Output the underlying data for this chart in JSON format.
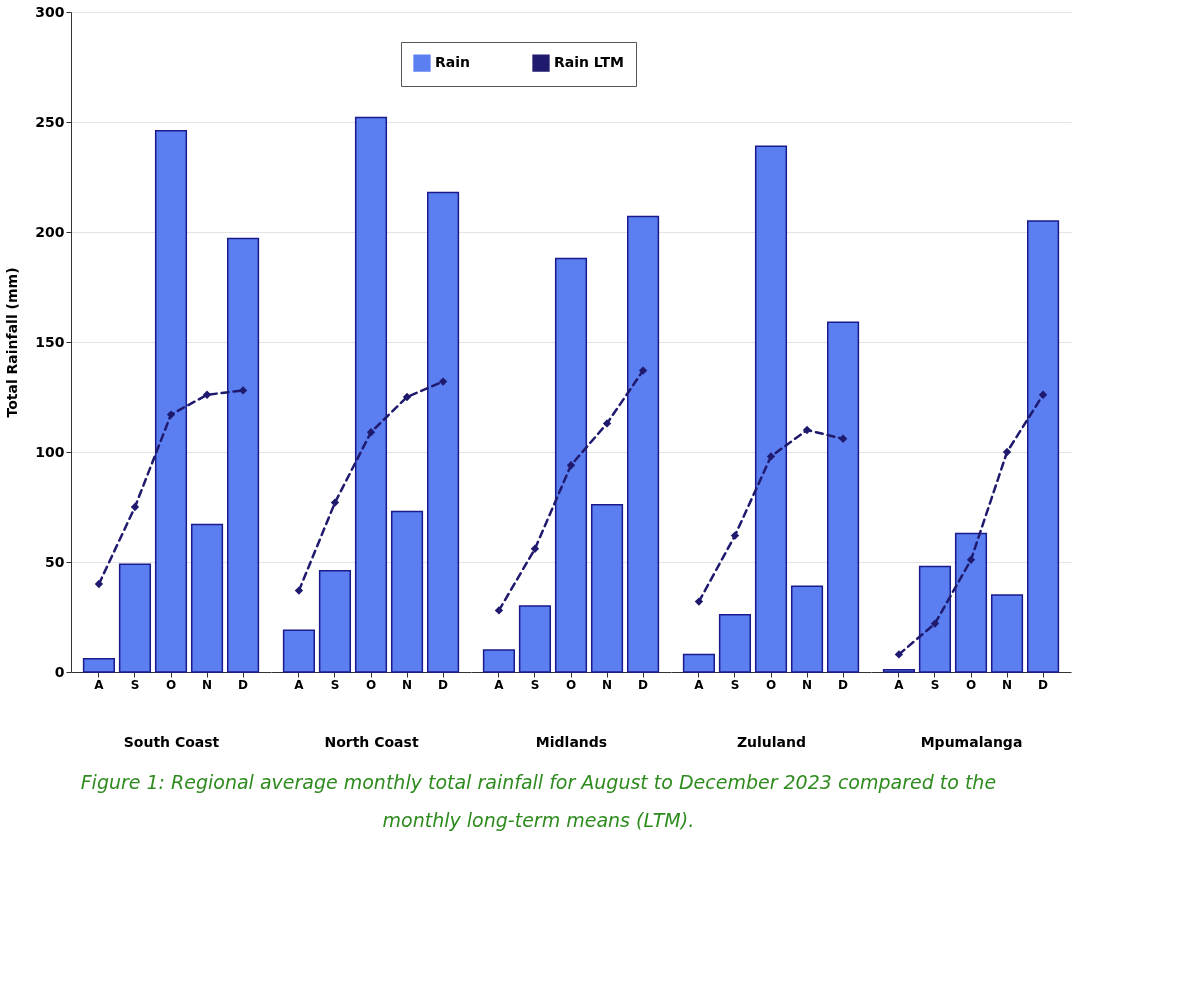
{
  "chart_data": [
    {
      "type": "bar",
      "xlabel": "South Coast",
      "ylabel": "Total Rainfall (mm)",
      "categories": [
        "A",
        "S",
        "O",
        "N",
        "D"
      ],
      "ylim": [
        0,
        300
      ],
      "yticks": [
        0,
        50,
        100,
        150,
        200,
        250,
        300
      ],
      "grid": "y",
      "legend": "top",
      "marker": "diamond",
      "line_style": "dashed",
      "annotations": [
        "Figure 1: Regional average monthly total rainfall for August to December 2023 compared to the monthly long-term means (LTM)."
      ],
      "series": [
        {
          "name": "Rain",
          "color": "#5b7ff0",
          "values": [
            6,
            49,
            246,
            67,
            197
          ]
        },
        {
          "name": "Rain LTM",
          "type": "line",
          "color": "#1f1a6e",
          "values": [
            40,
            75,
            117,
            126,
            128
          ]
        }
      ]
    },
    {
      "type": "bar",
      "xlabel": "North Coast",
      "categories": [
        "A",
        "S",
        "O",
        "N",
        "D"
      ],
      "ylim": [
        0,
        300
      ],
      "yticks": [
        0,
        50,
        100,
        150,
        200,
        250,
        300
      ],
      "grid": "y",
      "tick_labels": "x",
      "marker": "diamond",
      "line_style": "dashed",
      "series": [
        {
          "name": "Rain",
          "color": "#5b7ff0",
          "values": [
            19,
            46,
            252,
            73,
            218
          ]
        },
        {
          "name": "Rain LTM",
          "type": "line",
          "color": "#1f1a6e",
          "values": [
            37,
            77,
            109,
            125,
            132
          ]
        }
      ]
    },
    {
      "type": "bar",
      "xlabel": "Midlands",
      "categories": [
        "A",
        "S",
        "O",
        "N",
        "D"
      ],
      "ylim": [
        0,
        300
      ],
      "yticks": [
        0,
        50,
        100,
        150,
        200,
        250,
        300
      ],
      "grid": "y",
      "tick_labels": "x",
      "marker": "diamond",
      "line_style": "dashed",
      "series": [
        {
          "name": "Rain",
          "color": "#5b7ff0",
          "values": [
            10,
            30,
            188,
            76,
            207
          ]
        },
        {
          "name": "Rain LTM",
          "type": "line",
          "color": "#1f1a6e",
          "values": [
            28,
            56,
            94,
            113,
            137
          ]
        }
      ]
    },
    {
      "type": "bar",
      "xlabel": "Zululand",
      "categories": [
        "A",
        "S",
        "O",
        "N",
        "D"
      ],
      "ylim": [
        0,
        300
      ],
      "yticks": [
        0,
        50,
        100,
        150,
        200,
        250,
        300
      ],
      "grid": "y",
      "tick_labels": "x",
      "marker": "diamond",
      "line_style": "dashed",
      "series": [
        {
          "name": "Rain",
          "color": "#5b7ff0",
          "values": [
            8,
            26,
            239,
            39,
            159
          ]
        },
        {
          "name": "Rain LTM",
          "type": "line",
          "color": "#1f1a6e",
          "values": [
            32,
            62,
            98,
            110,
            106
          ]
        }
      ]
    },
    {
      "type": "bar",
      "xlabel": "Mpumalanga",
      "categories": [
        "A",
        "S",
        "O",
        "N",
        "D"
      ],
      "ylim": [
        0,
        300
      ],
      "yticks": [
        0,
        50,
        100,
        150,
        200,
        250,
        300
      ],
      "grid": "y",
      "tick_labels": "x",
      "marker": "diamond",
      "line_style": "dashed",
      "series": [
        {
          "name": "Rain",
          "color": "#5b7ff0",
          "values": [
            1,
            48,
            63,
            35,
            205
          ]
        },
        {
          "name": "Rain LTM",
          "type": "line",
          "color": "#1f1a6e",
          "values": [
            8,
            22,
            51,
            100,
            126
          ]
        }
      ]
    }
  ]
}
